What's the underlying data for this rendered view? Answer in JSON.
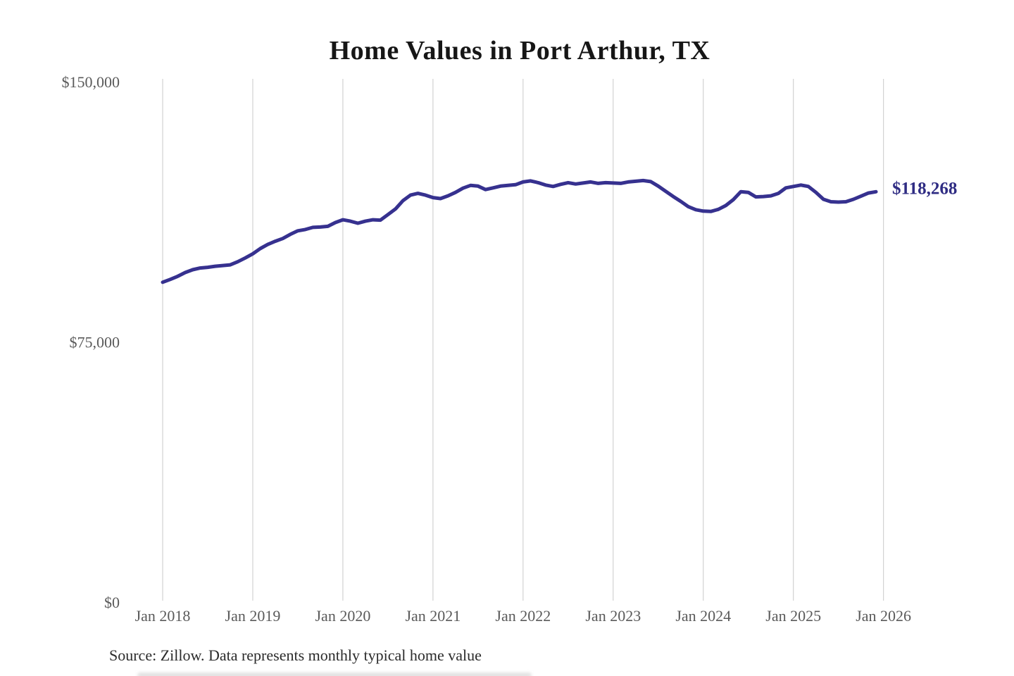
{
  "title": "Home Values in Port Arthur, TX",
  "source_note": "Source: Zillow. Data represents monthly typical home value",
  "colors": {
    "line": "#36318f",
    "end_label": "#2f2c83",
    "grid": "#c9c9c9",
    "axis_text": "#5a5a5a",
    "title_text": "#161616",
    "source_text": "#2b2b2b",
    "background": "#ffffff"
  },
  "chart_data": {
    "type": "line",
    "title": "Home Values in Port Arthur, TX",
    "frequency": "monthly",
    "x_start": "Jan 2018",
    "x_end": "Jan 2026",
    "x_tick_labels": [
      "Jan 2018",
      "Jan 2019",
      "Jan 2020",
      "Jan 2021",
      "Jan 2022",
      "Jan 2023",
      "Jan 2024",
      "Jan 2025",
      "Jan 2026"
    ],
    "y_ticks": [
      0,
      75000,
      150000
    ],
    "y_tick_labels": [
      "$0",
      "$75,000",
      "$150,000"
    ],
    "ylim": [
      0,
      150000
    ],
    "grid": "vertical-only",
    "legend": "none",
    "end_value": 118268,
    "end_label": "$118,268",
    "series": [
      {
        "name": "Monthly typical home value",
        "values": [
          92200,
          93000,
          93900,
          95000,
          95800,
          96300,
          96500,
          96800,
          97000,
          97200,
          98100,
          99200,
          100400,
          101900,
          103100,
          104000,
          104800,
          106000,
          107000,
          107400,
          108000,
          108100,
          108300,
          109400,
          110200,
          109800,
          109200,
          109800,
          110200,
          110100,
          111700,
          113300,
          115700,
          117300,
          117800,
          117300,
          116600,
          116300,
          117100,
          118100,
          119300,
          120100,
          119900,
          118900,
          119400,
          119900,
          120100,
          120300,
          121100,
          121400,
          120900,
          120200,
          119800,
          120400,
          120900,
          120500,
          120800,
          121100,
          120700,
          120900,
          120800,
          120700,
          121100,
          121300,
          121500,
          121200,
          119900,
          118400,
          116900,
          115500,
          114000,
          113100,
          112700,
          112600,
          113200,
          114300,
          116000,
          118300,
          118100,
          116800,
          116900,
          117100,
          117800,
          119400,
          119800,
          120200,
          119800,
          118100,
          116100,
          115400,
          115300,
          115400,
          116100,
          117000,
          117900,
          118268
        ]
      }
    ]
  }
}
